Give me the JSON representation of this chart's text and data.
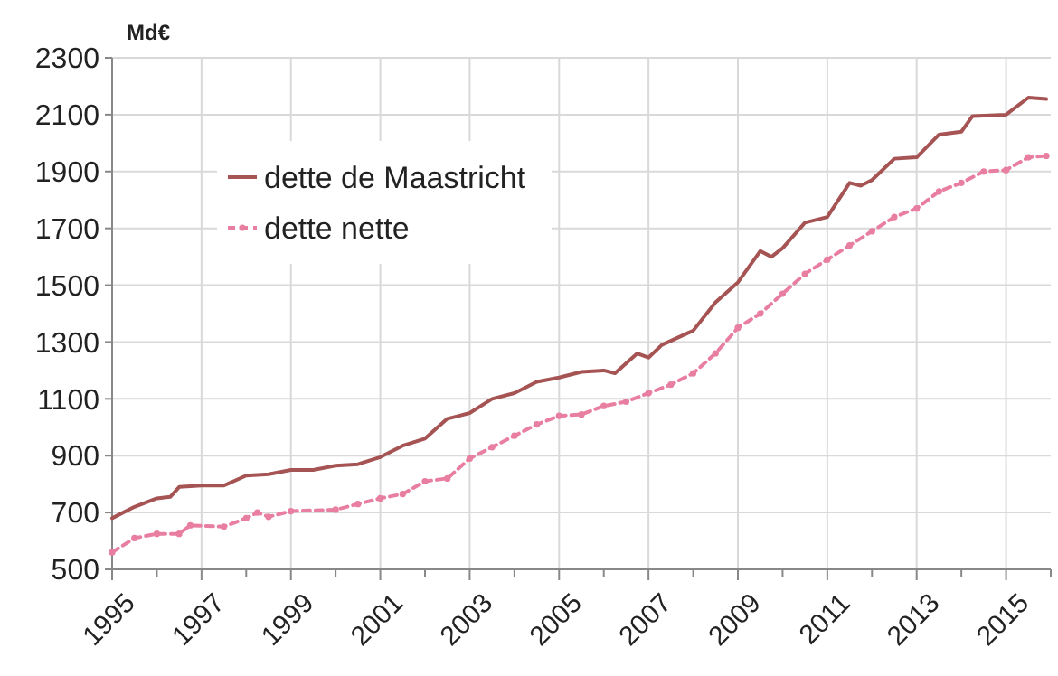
{
  "chart_data": {
    "type": "line",
    "ylabel": "Md€",
    "xlim": [
      1995,
      2016
    ],
    "xticks": [
      1995,
      {
        "value": 1996,
        "label": null
      },
      1997,
      {
        "value": 1998,
        "label": null
      },
      1999,
      {
        "value": 2000,
        "label": null
      },
      2001,
      {
        "value": 2002,
        "label": null
      },
      2003,
      {
        "value": 2004,
        "label": null
      },
      2005,
      {
        "value": 2006,
        "label": null
      },
      2007,
      {
        "value": 2008,
        "label": null
      },
      2009,
      {
        "value": 2010,
        "label": null
      },
      2011,
      {
        "value": 2012,
        "label": null
      },
      2013,
      {
        "value": 2014,
        "label": null
      },
      2015,
      {
        "value": 2016,
        "label": null
      }
    ],
    "ylim": [
      500,
      2300
    ],
    "yticks": [
      500,
      700,
      900,
      1100,
      1300,
      1500,
      1700,
      1900,
      2100,
      2300
    ],
    "grid": true,
    "legend": "top left",
    "series": [
      {
        "name": "dette de Maastricht",
        "color": "#a65353",
        "line_style": "solid",
        "marker": "none",
        "x": [
          1995,
          1995.5,
          1996,
          1996.3,
          1996.5,
          1997,
          1997.5,
          1998,
          1998.5,
          1999,
          1999.5,
          2000,
          2000.5,
          2001,
          2001.5,
          2002,
          2002.5,
          2003,
          2003.5,
          2004,
          2004.5,
          2005,
          2005.5,
          2006,
          2006.25,
          2006.75,
          2007,
          2007.3,
          2008,
          2008.5,
          2009,
          2009.5,
          2009.75,
          2010,
          2010.5,
          2011,
          2011.5,
          2011.75,
          2012,
          2012.5,
          2013,
          2013.5,
          2014,
          2014.25,
          2015,
          2015.5,
          2015.9
        ],
        "values": [
          680,
          720,
          750,
          755,
          790,
          795,
          795,
          830,
          835,
          850,
          850,
          865,
          870,
          895,
          935,
          960,
          1030,
          1050,
          1100,
          1120,
          1160,
          1175,
          1195,
          1200,
          1190,
          1260,
          1245,
          1290,
          1340,
          1440,
          1510,
          1620,
          1600,
          1630,
          1720,
          1740,
          1860,
          1850,
          1870,
          1945,
          1950,
          2030,
          2040,
          2095,
          2100,
          2160,
          2155
        ]
      },
      {
        "name": "dette nette",
        "color": "#e87ea0",
        "line_style": "dashed",
        "marker": "circle",
        "x": [
          1995,
          1995.5,
          1996,
          1996.5,
          1996.75,
          1997.5,
          1998,
          1998.25,
          1998.5,
          1999,
          2000,
          2000.5,
          2001,
          2001.5,
          2002,
          2002.5,
          2003,
          2003.5,
          2004,
          2004.5,
          2005,
          2005.5,
          2006,
          2006.5,
          2007,
          2007.5,
          2008,
          2008.5,
          2009,
          2009.5,
          2010,
          2010.5,
          2011,
          2011.5,
          2012,
          2012.5,
          2013,
          2013.5,
          2014,
          2014.5,
          2015,
          2015.5,
          2015.9
        ],
        "values": [
          560,
          610,
          625,
          625,
          655,
          650,
          680,
          700,
          685,
          705,
          710,
          730,
          750,
          765,
          810,
          820,
          890,
          930,
          970,
          1010,
          1040,
          1045,
          1075,
          1090,
          1120,
          1150,
          1190,
          1260,
          1350,
          1400,
          1470,
          1540,
          1590,
          1640,
          1690,
          1740,
          1770,
          1830,
          1860,
          1900,
          1905,
          1950,
          1955
        ]
      }
    ]
  }
}
